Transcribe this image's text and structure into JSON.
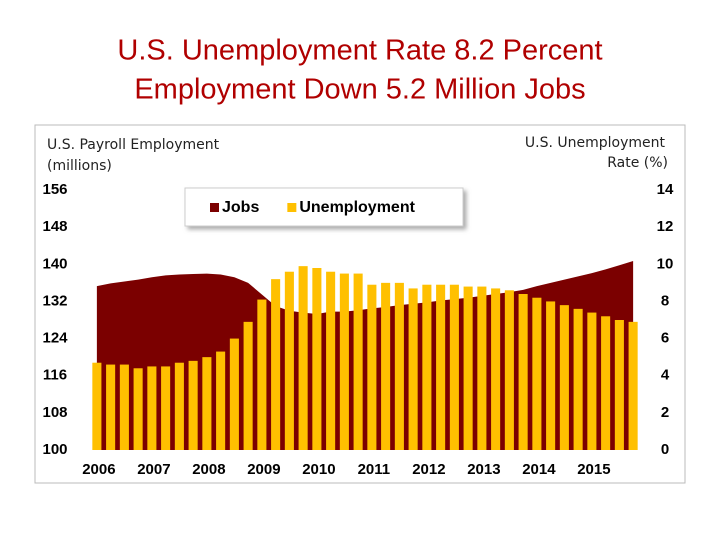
{
  "chart_data": {
    "type": "bar-area",
    "title": [
      "U.S. Unemployment Rate 8.2 Percent",
      "Employment Down 5.2 Million Jobs"
    ],
    "ylabel": [
      "U.S. Payroll Employment",
      "(millions)"
    ],
    "y2label": [
      "U.S. Unemployment",
      "Rate (%)"
    ],
    "categories": [
      "2006",
      null,
      null,
      null,
      "2007",
      null,
      null,
      null,
      "2008",
      null,
      null,
      null,
      "2009",
      null,
      null,
      null,
      "2010",
      null,
      null,
      null,
      "2011",
      null,
      null,
      null,
      "2012",
      null,
      null,
      null,
      "2013",
      null,
      null,
      null,
      "2014",
      null,
      null,
      null,
      "2015",
      null,
      null,
      null
    ],
    "series": [
      {
        "name": "Jobs",
        "color": "#7b0000",
        "kind": "area",
        "axis": "y",
        "values": [
          135.3,
          135.9,
          136.3,
          136.7,
          137.2,
          137.6,
          137.8,
          137.9,
          138.0,
          137.8,
          137.2,
          136.0,
          133.5,
          131.0,
          130.0,
          129.6,
          129.3,
          129.8,
          129.8,
          130.1,
          130.5,
          130.8,
          131.2,
          131.5,
          131.8,
          132.2,
          132.5,
          132.8,
          133.2,
          133.6,
          134.0,
          134.5,
          135.3,
          136.0,
          136.7,
          137.4,
          138.1,
          138.9,
          139.8,
          140.7
        ]
      },
      {
        "name": "Unemployment",
        "color": "#ffc000",
        "kind": "bar",
        "axis": "y2",
        "values": [
          4.7,
          4.6,
          4.6,
          4.4,
          4.5,
          4.5,
          4.7,
          4.8,
          5.0,
          5.3,
          6.0,
          6.9,
          8.1,
          9.2,
          9.6,
          9.9,
          9.8,
          9.6,
          9.5,
          9.5,
          8.9,
          9.0,
          9.0,
          8.7,
          8.9,
          8.9,
          8.9,
          8.8,
          8.8,
          8.7,
          8.6,
          8.4,
          8.2,
          8.0,
          7.8,
          7.6,
          7.4,
          7.2,
          7.0,
          6.9
        ]
      }
    ],
    "ylim": [
      100,
      156
    ],
    "yticks": [
      100,
      108,
      116,
      124,
      132,
      140,
      148,
      156
    ],
    "y2lim": [
      0,
      14
    ],
    "y2ticks": [
      0,
      2,
      4,
      6,
      8,
      10,
      12,
      14
    ],
    "legend": "top-left"
  }
}
